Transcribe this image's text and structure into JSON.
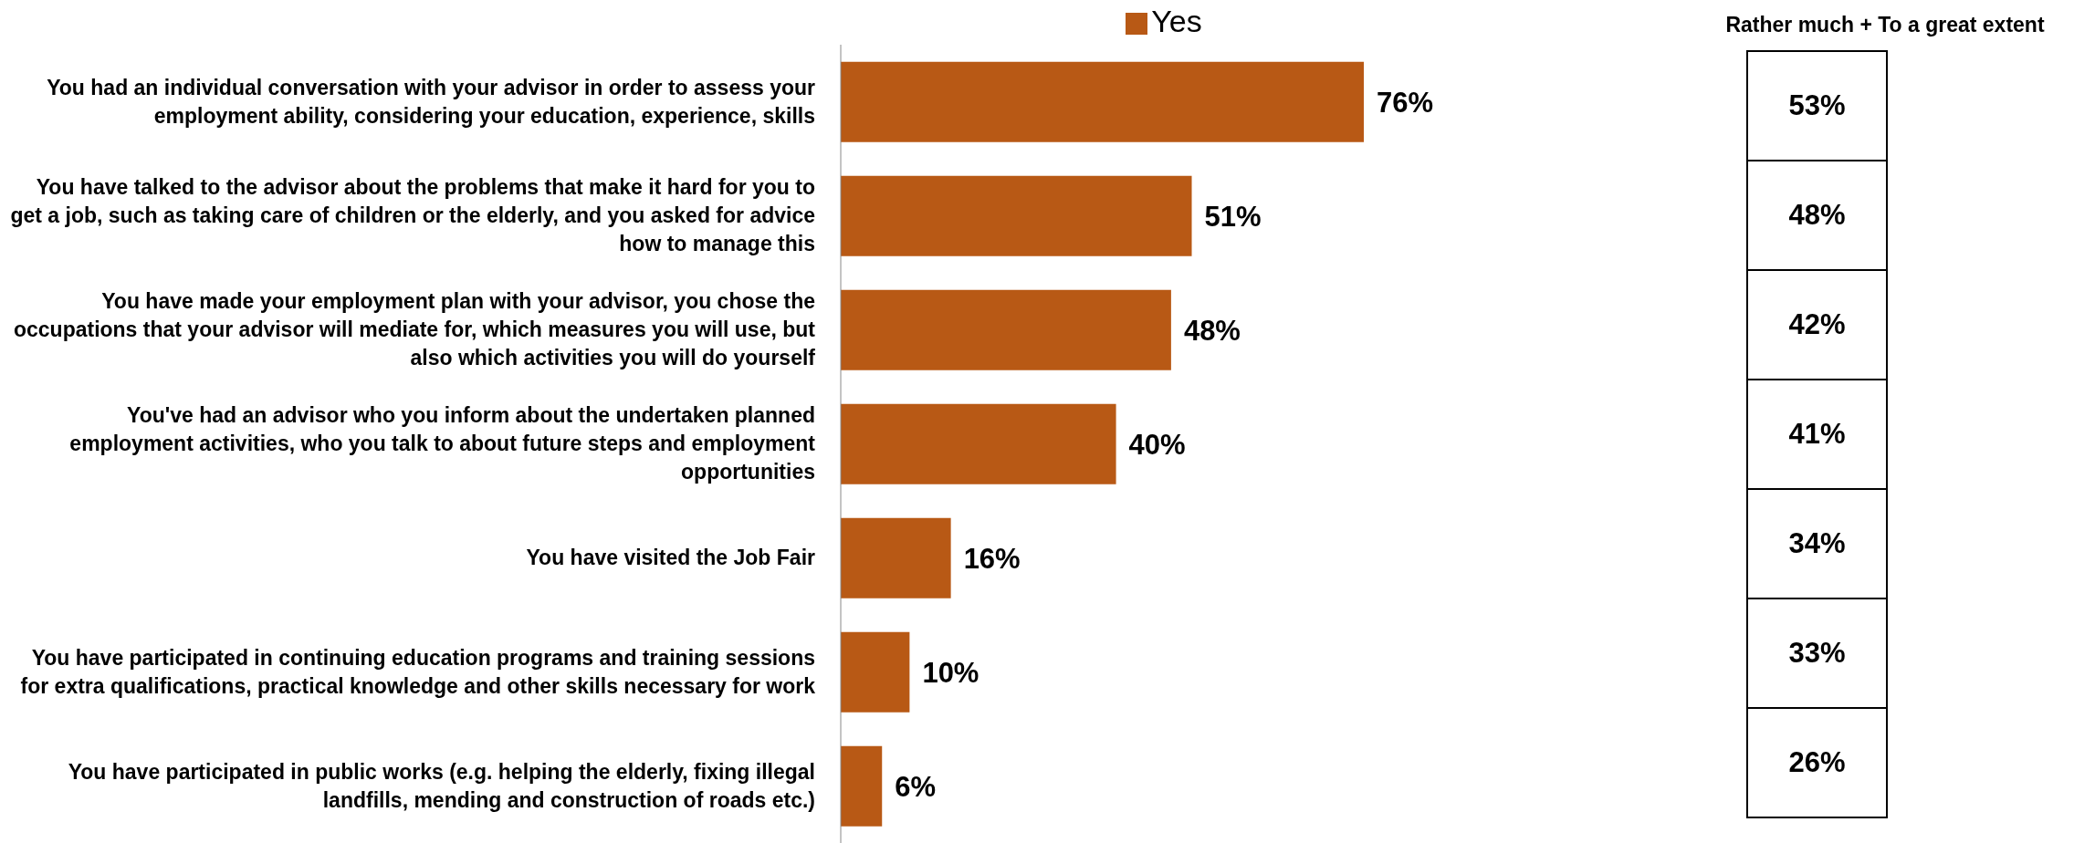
{
  "chart_data": [
    {
      "type": "bar",
      "orientation": "horizontal",
      "legend": "top",
      "categories": [
        "You had an individual conversation with your advisor in order to assess your employment ability, considering your education, experience, skills",
        "You have talked to the advisor about the problems that make it hard for you to get a job, such as taking care of children or the elderly, and you asked for advice how to manage this",
        "You have made your employment plan with your advisor, you chose the occupations that your advisor will mediate for, which measures you will use, but also which activities you will do yourself",
        "You've had an advisor who you inform about the undertaken planned employment activities, who you talk to about future steps and employment opportunities",
        "You have visited the Job Fair",
        "You have participated in continuing education programs and training sessions for extra qualifications, practical knowledge and other skills necessary for work",
        "You have participated in public works (e.g. helping the elderly, fixing illegal landfills, mending and construction of roads etc.)"
      ],
      "series": [
        {
          "name": "Yes",
          "color": "#b85915",
          "values": [
            76,
            51,
            48,
            40,
            16,
            10,
            6
          ],
          "value_labels": [
            "76%",
            "51%",
            "48%",
            "40%",
            "16%",
            "10%",
            "6%"
          ]
        }
      ]
    },
    {
      "type": "other",
      "title": "Rather much + To a great extent",
      "annotations": [
        "53%",
        "48%",
        "42%",
        "41%",
        "34%",
        "33%",
        "26%"
      ]
    }
  ]
}
